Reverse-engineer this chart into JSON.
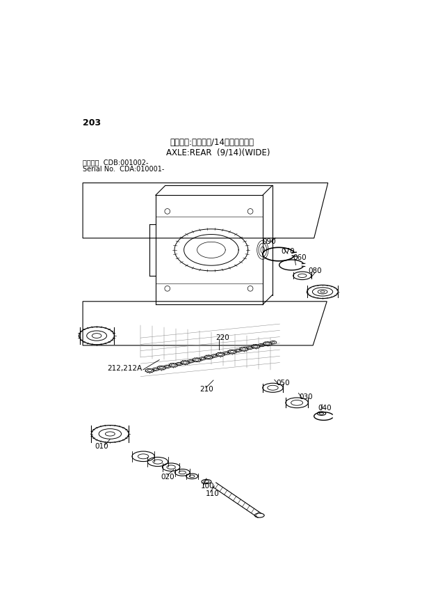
{
  "page_number": "203",
  "title_japanese": "アクスル:リヤ（９/14）（ワイド）",
  "title_english": "AXLE:REAR  (9/14)(WIDE)",
  "serial_label1": "適用号機  CDB:001002-",
  "serial_label2": "Serial No.  CDA:010001-",
  "background_color": "#ffffff",
  "line_color": "#000000"
}
